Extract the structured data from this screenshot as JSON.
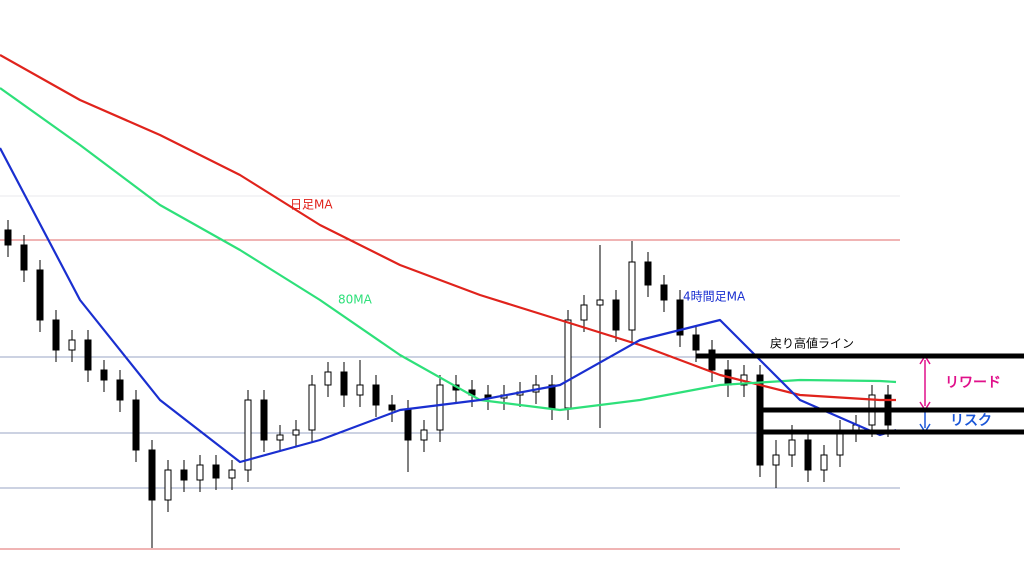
{
  "chart_data": {
    "type": "candlestick",
    "xlim": [
      -0.5,
      55.5
    ],
    "ylim": [
      0,
      576
    ],
    "candles": {
      "x": [
        0,
        1,
        2,
        3,
        4,
        5,
        6,
        7,
        8,
        9,
        10,
        11,
        12,
        13,
        14,
        15,
        16,
        17,
        18,
        19,
        20,
        21,
        22,
        23,
        24,
        25,
        26,
        27,
        28,
        29,
        30,
        31,
        32,
        33,
        34,
        35,
        36,
        37,
        38,
        39,
        40,
        41,
        42,
        43,
        44,
        45,
        46,
        47,
        48,
        49,
        50,
        51,
        52,
        53,
        54,
        55
      ],
      "open": [
        346,
        331,
        306,
        256,
        226,
        236,
        206,
        196,
        176,
        126,
        76,
        106,
        96,
        111,
        98,
        106,
        176,
        136,
        141,
        146,
        191,
        204,
        181,
        191,
        171,
        166,
        136,
        146,
        191,
        186,
        181,
        178,
        181,
        184,
        191,
        168,
        256,
        271,
        276,
        246,
        314,
        291,
        276,
        241,
        226,
        206,
        191,
        201,
        111,
        121,
        136,
        106,
        121,
        146,
        151,
        181
      ],
      "high": [
        356,
        341,
        316,
        266,
        246,
        246,
        216,
        206,
        186,
        136,
        116,
        116,
        121,
        121,
        116,
        186,
        186,
        151,
        156,
        201,
        214,
        214,
        216,
        201,
        181,
        176,
        156,
        201,
        201,
        196,
        191,
        191,
        194,
        201,
        201,
        266,
        281,
        331,
        286,
        335,
        324,
        301,
        286,
        251,
        236,
        216,
        211,
        211,
        136,
        151,
        146,
        131,
        156,
        161,
        191,
        191
      ],
      "low": [
        319,
        294,
        244,
        214,
        214,
        194,
        184,
        164,
        114,
        28,
        64,
        84,
        84,
        86,
        86,
        94,
        124,
        124,
        129,
        134,
        179,
        169,
        169,
        159,
        154,
        104,
        124,
        134,
        174,
        169,
        166,
        166,
        169,
        172,
        156,
        156,
        244,
        148,
        234,
        234,
        279,
        264,
        229,
        214,
        194,
        179,
        179,
        99,
        88,
        109,
        94,
        94,
        109,
        134,
        139,
        139
      ],
      "close": [
        331,
        306,
        256,
        226,
        236,
        206,
        196,
        176,
        126,
        76,
        106,
        96,
        111,
        98,
        106,
        176,
        136,
        141,
        146,
        191,
        204,
        181,
        191,
        171,
        166,
        136,
        146,
        191,
        186,
        181,
        178,
        181,
        184,
        191,
        168,
        256,
        271,
        276,
        246,
        314,
        291,
        276,
        241,
        226,
        206,
        191,
        201,
        111,
        121,
        136,
        106,
        121,
        146,
        151,
        181,
        151
      ]
    },
    "ma_x": [
      -0.5,
      4.5,
      9.5,
      14.5,
      19.5,
      24.5,
      29.5,
      34.5,
      39.5,
      44.5,
      49.5,
      54.5,
      55.5
    ],
    "series": [
      {
        "name": "日足MA",
        "color": "#e0231c",
        "values": [
          521,
          476,
          441,
          401,
          351,
          311,
          281,
          256,
          231,
          201,
          181,
          176,
          176
        ]
      },
      {
        "name": "80MA",
        "color": "#2ee07a",
        "values": [
          488,
          431,
          371,
          326,
          276,
          221,
          176,
          166,
          176,
          191,
          196,
          195,
          194
        ]
      },
      {
        "name": "4時間足MA",
        "color": "#1a2fd0",
        "values": [
          428,
          276,
          176,
          114,
          136,
          166,
          176,
          191,
          236,
          256,
          176,
          141,
          146
        ]
      }
    ],
    "hlines": [
      {
        "value": 380,
        "color": "#e8e8ee"
      },
      {
        "value": 336,
        "color": "#e06a6a"
      },
      {
        "value": 219,
        "color": "#9aa6c4"
      },
      {
        "value": 143,
        "color": "#9aa6c4"
      },
      {
        "value": 88,
        "color": "#9aa6c4"
      },
      {
        "value": 27,
        "color": "#e06a6a"
      }
    ],
    "levels": [
      {
        "value": 220,
        "from": 43
      },
      {
        "value": 166,
        "from": 47
      },
      {
        "value": 144,
        "from": 47
      }
    ],
    "annotations": [
      {
        "text": "戻り高値ライン",
        "color": "#000000"
      },
      {
        "text": "リワード",
        "color": "#e0108a"
      },
      {
        "text": "リスク",
        "color": "#1a56d8"
      }
    ]
  }
}
